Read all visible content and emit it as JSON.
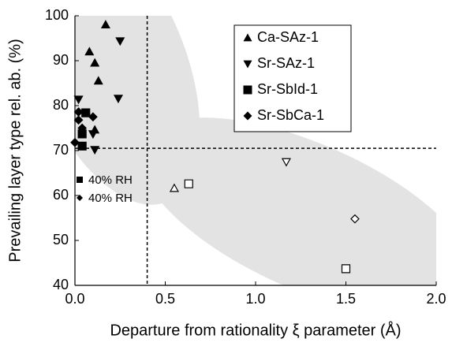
{
  "chart_data": {
    "type": "scatter",
    "xlabel": "Departure from rationality ξ parameter (Å)",
    "ylabel": "Prevailing  layer type rel. ab. (%)",
    "xlim": [
      0,
      2
    ],
    "ylim": [
      40,
      100
    ],
    "xticks": [
      {
        "value": 0,
        "label": "0.0"
      },
      0.5,
      {
        "value": 1,
        "label": "1.0"
      },
      1.5,
      {
        "value": 2,
        "label": "2.0"
      }
    ],
    "yticks": [
      40,
      50,
      60,
      70,
      80,
      90,
      100
    ],
    "vline": 0.4,
    "hline": 70.5,
    "series": [
      {
        "name": "Ca-SAz-1",
        "marker": "triangle-up",
        "color": "#000000",
        "x": [
          0.17,
          0.08,
          0.11,
          0.13,
          0.11,
          0.55
        ],
        "values": [
          98,
          92,
          89.5,
          85.5,
          74.6,
          61.6
        ],
        "filled": [
          true,
          true,
          true,
          true,
          true,
          false
        ]
      },
      {
        "name": "Sr-SAz-1",
        "marker": "triangle-down",
        "color": "#000000",
        "x": [
          0.25,
          0.24,
          0.1,
          0.11,
          0.02,
          1.17
        ],
        "values": [
          94.4,
          81.6,
          73.7,
          70.2,
          81.4,
          67.5
        ],
        "filled": [
          true,
          true,
          true,
          true,
          true,
          false
        ]
      },
      {
        "name": "Sr-SbId-1",
        "marker": "square",
        "color": "#000000",
        "x": [
          0.06,
          0.04,
          0.04,
          0.63,
          1.5
        ],
        "values": [
          78.4,
          73.7,
          71,
          62.6,
          43.7
        ],
        "filled": [
          true,
          true,
          true,
          false,
          false
        ]
      },
      {
        "name": "Sr-SbCa-1",
        "marker": "diamond",
        "color": "#000000",
        "x": [
          0.02,
          0.1,
          0.02,
          0,
          0.04,
          1.55
        ],
        "values": [
          78.6,
          77.5,
          76.8,
          71.8,
          75,
          54.8
        ],
        "filled": [
          true,
          true,
          true,
          true,
          true,
          false
        ]
      }
    ],
    "annotations": [
      "40% RH",
      "40% RH"
    ]
  }
}
